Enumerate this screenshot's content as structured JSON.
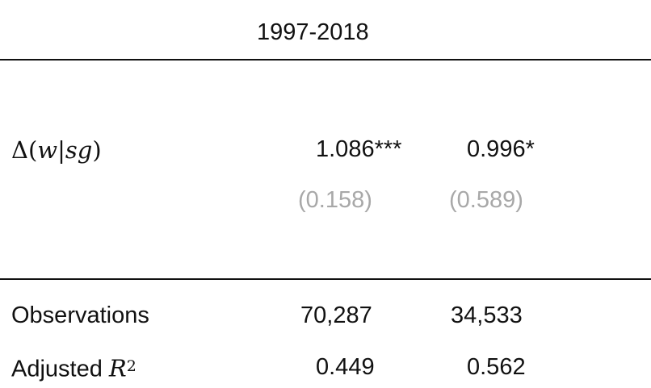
{
  "table": {
    "period": "1997-2018",
    "rows": {
      "delta": {
        "label_prefix": "Δ(",
        "label_var1": "w",
        "label_sep": "|",
        "label_var2": "sg",
        "label_suffix": ")",
        "coef_1": "1.086***",
        "coef_2": "0.996*",
        "se_1": "(0.158)",
        "se_2": "(0.589)"
      },
      "observations": {
        "label": "Observations",
        "value_1": "70,287",
        "value_2": "34,533"
      },
      "adjusted_r2": {
        "label_text": "Adjusted ",
        "label_var": "R",
        "label_sup": "2",
        "value_1": "0.449",
        "value_2": "0.562"
      }
    },
    "colors": {
      "text": "#111111",
      "standard_error": "#a8a8a8",
      "rule": "#111111"
    }
  }
}
